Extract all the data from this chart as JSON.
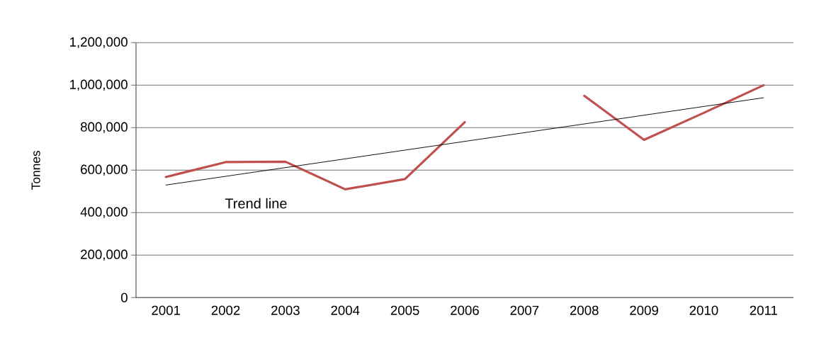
{
  "chart_data": {
    "type": "line",
    "ylabel": "Tonnes",
    "x": [
      2001,
      2002,
      2003,
      2004,
      2005,
      2006,
      2007,
      2008,
      2009,
      2010,
      2011
    ],
    "series": [
      {
        "color": "#c0504d",
        "values": [
          568000,
          638000,
          640000,
          510000,
          558000,
          826000,
          null,
          950000,
          743000,
          870000,
          1000000
        ]
      },
      {
        "type": "line",
        "color": "#000000",
        "x": [
          2001,
          2011
        ],
        "values": [
          530000,
          941000
        ]
      }
    ],
    "xlim": [
      2000.5,
      2011.5
    ],
    "xticks": [
      2001,
      2002,
      2003,
      2004,
      2005,
      2006,
      2007,
      2008,
      2009,
      2010,
      2011
    ],
    "ylim": [
      0,
      1200000
    ],
    "yticks": [
      0,
      {
        "value": 200000,
        "label": "200,000"
      },
      {
        "value": 400000,
        "label": "400,000"
      },
      {
        "value": 600000,
        "label": "600,000"
      },
      {
        "value": 800000,
        "label": "800,000"
      },
      {
        "value": 1000000,
        "label": "1,000,000"
      },
      {
        "value": 1200000,
        "label": "1,200,000"
      }
    ],
    "grid": "y",
    "annotations": [
      "Trend line"
    ]
  }
}
